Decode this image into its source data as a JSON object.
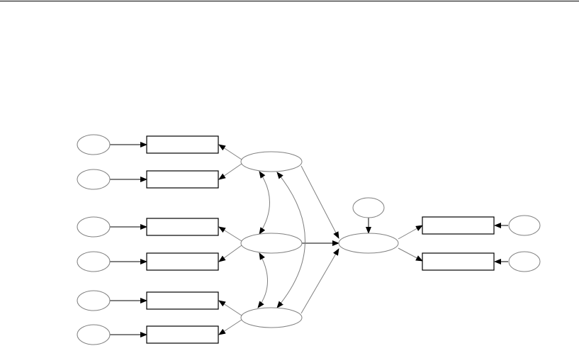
{
  "diagram": {
    "type": "structural-equation-path-diagram",
    "colors": {
      "stroke": "#000000",
      "ellipse_stroke": "#808080",
      "background": "#ffffff"
    }
  }
}
